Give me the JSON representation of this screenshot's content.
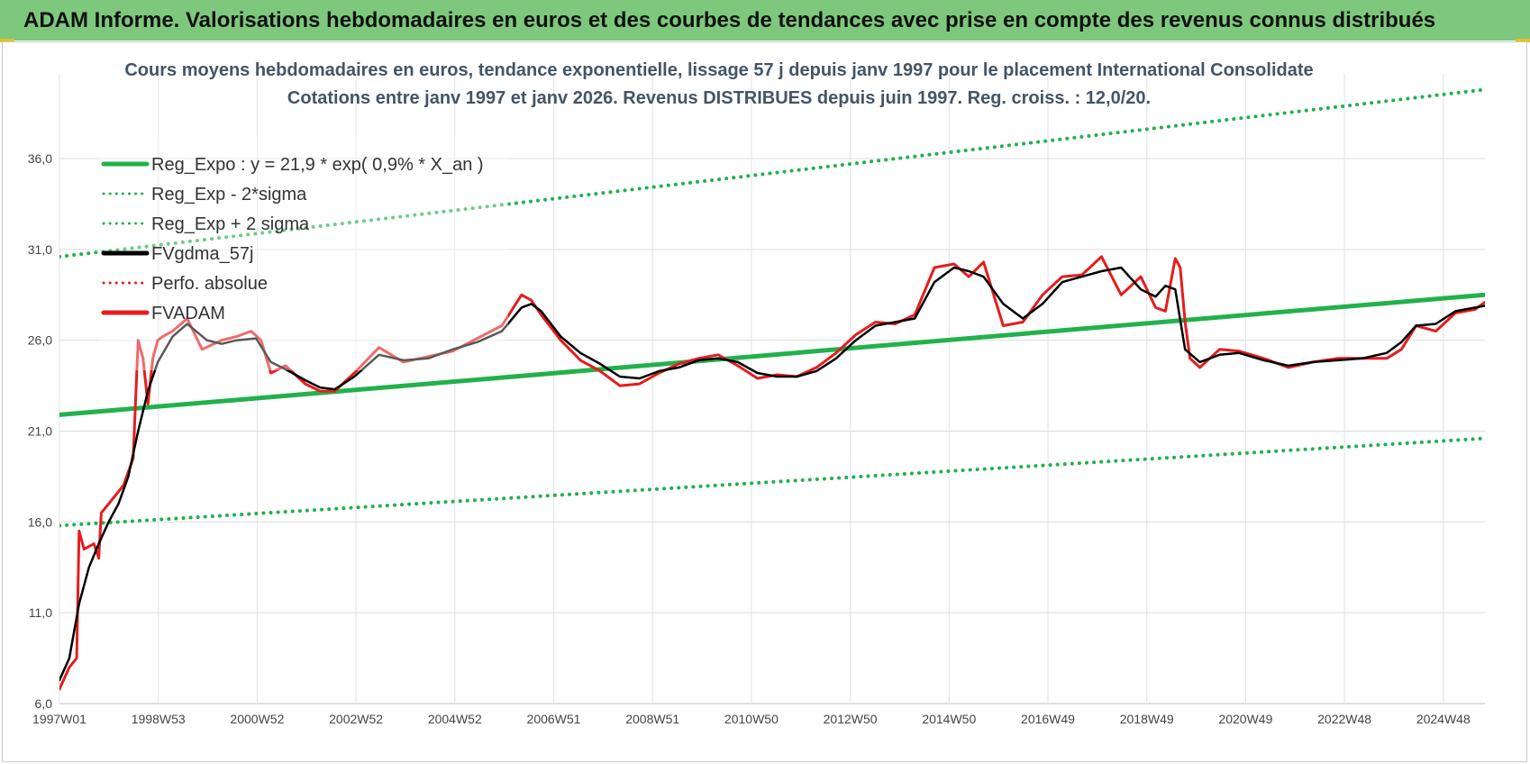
{
  "header": {
    "title": "ADAM Informe. Valorisations hebdomadaires en euros et des courbes de tendances avec prise en compte des revenus connus distribués"
  },
  "chart_data": {
    "type": "line",
    "title": "Cours moyens hebdomadaires en euros, tendance exponentielle, lissage 57 j depuis janv 1997 pour le placement International Consolidate",
    "subtitle": "Cotations entre janv 1997 et janv 2026. Revenus DISTRIBUES depuis juin 1997. Reg. croiss. : 12,0/20.",
    "xlabel": "",
    "ylabel": "",
    "x_ticks": [
      "1997W01",
      "1998W53",
      "2000W52",
      "2002W52",
      "2004W52",
      "2006W51",
      "2008W51",
      "2010W50",
      "2012W50",
      "2014W50",
      "2016W49",
      "2018W49",
      "2020W49",
      "2022W48",
      "2024W48"
    ],
    "y_ticks": [
      "6,0",
      "11,0",
      "16,0",
      "21,0",
      "26,0",
      "31,0",
      "36,0"
    ],
    "xlim": [
      1997.0,
      2026.0
    ],
    "ylim": [
      6.0,
      36.0
    ],
    "grid": true,
    "legend_position": "top-left",
    "series": [
      {
        "name": "Reg_Expo : y = 21,9 * exp( 0,9% *  X_an )",
        "color": "#22b14c",
        "style": "solid",
        "x": [
          1997.0,
          2026.0
        ],
        "y": [
          21.9,
          28.5
        ]
      },
      {
        "name": "Reg_Exp - 2*sigma",
        "color": "#22b14c",
        "style": "dotted",
        "x": [
          1997.0,
          2026.0
        ],
        "y": [
          15.8,
          20.6
        ]
      },
      {
        "name": "Reg_Exp + 2 sigma",
        "color": "#22b14c",
        "style": "dotted",
        "x": [
          1997.0,
          2026.0
        ],
        "y": [
          30.6,
          39.8
        ]
      },
      {
        "name": "FVgdma_57j",
        "color": "#000000",
        "style": "solid",
        "x": [
          1997.0,
          1997.2,
          1997.4,
          1997.6,
          1997.8,
          1998.0,
          1998.2,
          1998.4,
          1998.6,
          1998.8,
          1999.0,
          1999.3,
          1999.6,
          2000.0,
          2000.3,
          2000.6,
          2001.0,
          2001.3,
          2001.6,
          2002.0,
          2002.3,
          2002.6,
          2003.0,
          2003.5,
          2004.0,
          2004.5,
          2005.0,
          2005.5,
          2006.0,
          2006.4,
          2006.6,
          2006.8,
          2007.2,
          2007.6,
          2008.0,
          2008.4,
          2008.8,
          2009.2,
          2009.6,
          2010.0,
          2010.4,
          2010.8,
          2011.2,
          2011.6,
          2012.0,
          2012.4,
          2012.8,
          2013.2,
          2013.6,
          2014.0,
          2014.4,
          2014.8,
          2015.2,
          2015.5,
          2015.8,
          2016.2,
          2016.6,
          2017.0,
          2017.4,
          2017.8,
          2018.2,
          2018.6,
          2019.0,
          2019.3,
          2019.5,
          2019.7,
          2019.9,
          2020.2,
          2020.6,
          2021.0,
          2021.5,
          2022.0,
          2022.5,
          2023.0,
          2023.5,
          2024.0,
          2024.3,
          2024.6,
          2025.0,
          2025.4,
          2025.8,
          2026.0
        ],
        "y": [
          7.3,
          8.5,
          11.5,
          13.5,
          14.8,
          16.0,
          17.0,
          18.5,
          21.0,
          23.2,
          24.8,
          26.2,
          26.9,
          26.0,
          25.8,
          26.0,
          26.1,
          24.8,
          24.4,
          23.8,
          23.4,
          23.3,
          24.0,
          25.2,
          24.9,
          25.0,
          25.5,
          25.9,
          26.5,
          27.8,
          28.0,
          27.6,
          26.2,
          25.3,
          24.7,
          24.0,
          23.9,
          24.3,
          24.5,
          24.9,
          25.0,
          24.8,
          24.2,
          24.0,
          24.0,
          24.3,
          25.0,
          26.0,
          26.8,
          27.0,
          27.2,
          29.2,
          30.0,
          29.8,
          29.5,
          28.0,
          27.2,
          28.0,
          29.2,
          29.5,
          29.8,
          30.0,
          28.8,
          28.4,
          29.0,
          28.8,
          25.5,
          24.8,
          25.2,
          25.3,
          24.9,
          24.6,
          24.8,
          24.9,
          25.0,
          25.3,
          25.9,
          26.8,
          26.9,
          27.6,
          27.8,
          27.9
        ]
      },
      {
        "name": "Perfo. absolue",
        "color": "#e61c1c",
        "style": "dotted",
        "x": [],
        "y": []
      },
      {
        "name": "FVADAM",
        "color": "#e61c1c",
        "style": "solid",
        "x": [
          1997.0,
          1997.2,
          1997.35,
          1997.4,
          1997.5,
          1997.7,
          1997.8,
          1997.85,
          1998.0,
          1998.3,
          1998.5,
          1998.6,
          1998.7,
          1998.8,
          1998.9,
          1999.0,
          1999.1,
          1999.3,
          1999.6,
          1999.9,
          2000.3,
          2000.6,
          2000.9,
          2001.1,
          2001.3,
          2001.6,
          2002.0,
          2002.3,
          2002.6,
          2003.0,
          2003.5,
          2004.0,
          2004.5,
          2005.0,
          2005.5,
          2006.0,
          2006.4,
          2006.6,
          2006.8,
          2007.2,
          2007.6,
          2008.0,
          2008.4,
          2008.8,
          2009.2,
          2009.6,
          2010.0,
          2010.4,
          2010.8,
          2011.2,
          2011.6,
          2012.0,
          2012.4,
          2012.8,
          2013.2,
          2013.6,
          2014.0,
          2014.4,
          2014.8,
          2015.2,
          2015.5,
          2015.8,
          2016.2,
          2016.6,
          2017.0,
          2017.4,
          2017.8,
          2018.2,
          2018.6,
          2019.0,
          2019.3,
          2019.5,
          2019.7,
          2019.8,
          2019.9,
          2020.0,
          2020.2,
          2020.6,
          2021.0,
          2021.5,
          2022.0,
          2022.5,
          2023.0,
          2023.5,
          2024.0,
          2024.3,
          2024.6,
          2025.0,
          2025.4,
          2025.8,
          2026.0
        ],
        "y": [
          6.8,
          8.0,
          8.5,
          15.5,
          14.5,
          14.8,
          14.0,
          16.5,
          17.0,
          18.0,
          19.5,
          26.0,
          25.0,
          22.5,
          25.0,
          26.0,
          26.2,
          26.5,
          27.2,
          25.5,
          26.0,
          26.2,
          26.5,
          26.0,
          24.2,
          24.6,
          23.6,
          23.2,
          23.2,
          24.2,
          25.6,
          24.8,
          25.1,
          25.4,
          26.1,
          26.8,
          28.5,
          28.2,
          27.4,
          26.0,
          24.9,
          24.3,
          23.5,
          23.6,
          24.2,
          24.7,
          25.0,
          25.2,
          24.6,
          23.9,
          24.1,
          24.0,
          24.5,
          25.3,
          26.3,
          27.0,
          26.9,
          27.4,
          30.0,
          30.2,
          29.5,
          30.3,
          26.8,
          27.0,
          28.5,
          29.5,
          29.6,
          30.6,
          28.5,
          29.5,
          27.8,
          27.6,
          30.5,
          30.0,
          27.0,
          25.0,
          24.5,
          25.5,
          25.4,
          25.0,
          24.5,
          24.8,
          25.0,
          25.0,
          25.0,
          25.5,
          26.8,
          26.5,
          27.5,
          27.7,
          28.1
        ]
      }
    ]
  }
}
